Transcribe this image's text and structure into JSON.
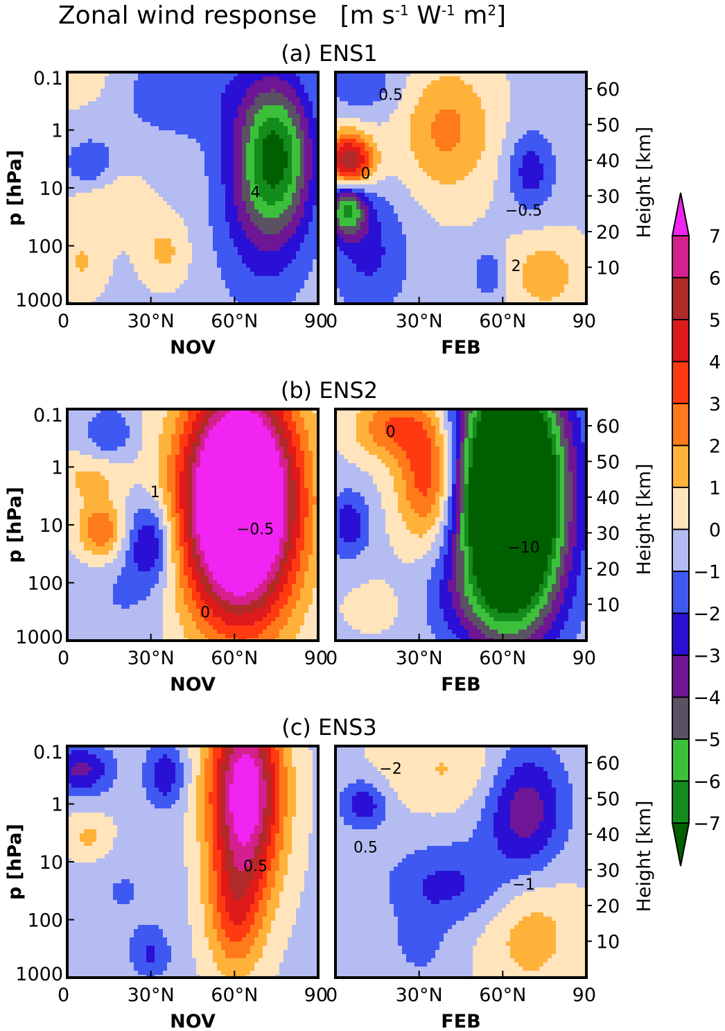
{
  "figure": {
    "title": "Zonal wind response",
    "unit_main": "[m s",
    "unit_sup1": "-1",
    "unit_mid": " W",
    "unit_sup2": "-1",
    "unit_end": " m",
    "unit_sup3": "2",
    "unit_close": "]"
  },
  "colorbar": {
    "levels": [
      "7",
      "6",
      "5",
      "4",
      "3",
      "2",
      "1",
      "0",
      "−1",
      "−2",
      "−3",
      "−4",
      "−5",
      "−6",
      "−7"
    ],
    "colors": [
      "#f224f2",
      "#d4208e",
      "#b02a2a",
      "#df1a1a",
      "#ff3a10",
      "#ff7a1a",
      "#ffb23a",
      "#ffe4bc",
      "#b4bcf2",
      "#4058f2",
      "#2a10d4",
      "#6e1696",
      "#5a5262",
      "#3cc03c",
      "#148c1c",
      "#006000"
    ]
  },
  "chart_data": [
    {
      "type": "heatmap",
      "panel": "(a) ENS1",
      "title": "(a) ENS1",
      "xlabel_left": "NOV",
      "xlabel_right": "FEB",
      "ylabel": "p [hPa]",
      "ylabel_right": "Height [km]",
      "x_ticks": [
        "0",
        "30°N",
        "60°N",
        "90"
      ],
      "y_ticks": [
        "0.1",
        "1",
        "10",
        "100",
        "1000"
      ],
      "height_ticks": [
        "60",
        "50",
        "40",
        "30",
        "20",
        "10"
      ],
      "xlim": [
        0,
        90
      ],
      "ylim": [
        1000,
        0.1
      ],
      "contour_labels_left": [
        "4"
      ],
      "contour_labels_right": [
        "0.5",
        "−0.5",
        "0",
        "2"
      ],
      "nov_features": [
        {
          "lat": 75,
          "logp": 0.4,
          "value": -5.5,
          "slat": 9,
          "slp": 0.9
        },
        {
          "lat": 70,
          "logp": 1.2,
          "value": -2.5,
          "slat": 12,
          "slp": 1.3
        },
        {
          "lat": 40,
          "logp": -0.7,
          "value": -1.5,
          "slat": 18,
          "slp": 0.6
        },
        {
          "lat": 8,
          "logp": 0.6,
          "value": -1.8,
          "slat": 6,
          "slp": 0.3
        },
        {
          "lat": 15,
          "logp": 1.3,
          "value": 1.2,
          "slat": 10,
          "slp": 0.4
        },
        {
          "lat": 35,
          "logp": 2.1,
          "value": 1.5,
          "slat": 6,
          "slp": 0.4
        },
        {
          "lat": 5,
          "logp": 2.3,
          "value": 1.3,
          "slat": 6,
          "slp": 0.4
        },
        {
          "lat": 5,
          "logp": -0.9,
          "value": 1.0,
          "slat": 12,
          "slp": 0.4
        }
      ],
      "feb_features": [
        {
          "lat": 5,
          "logp": 0.55,
          "value": 6.5,
          "slat": 6,
          "slp": 0.35
        },
        {
          "lat": 4,
          "logp": 1.35,
          "value": -5.5,
          "slat": 5,
          "slp": 0.35
        },
        {
          "lat": 12,
          "logp": 2.1,
          "value": -2.0,
          "slat": 10,
          "slp": 0.8
        },
        {
          "lat": 40,
          "logp": 0.0,
          "value": 2.5,
          "slat": 12,
          "slp": 0.8
        },
        {
          "lat": 70,
          "logp": 0.7,
          "value": -2.3,
          "slat": 6,
          "slp": 0.5
        },
        {
          "lat": 75,
          "logp": 2.5,
          "value": 1.8,
          "slat": 10,
          "slp": 0.5
        },
        {
          "lat": 55,
          "logp": 2.5,
          "value": -1.8,
          "slat": 4,
          "slp": 0.3
        },
        {
          "lat": 10,
          "logp": -0.8,
          "value": -1.5,
          "slat": 10,
          "slp": 0.4
        }
      ]
    },
    {
      "type": "heatmap",
      "panel": "(b) ENS2",
      "title": "(b) ENS2",
      "xlabel_left": "NOV",
      "xlabel_right": "FEB",
      "ylabel": "p [hPa]",
      "ylabel_right": "Height [km]",
      "x_ticks": [
        "0",
        "30°N",
        "60°N",
        "90"
      ],
      "y_ticks": [
        "0.1",
        "1",
        "10",
        "100",
        "1000"
      ],
      "height_ticks": [
        "60",
        "50",
        "40",
        "30",
        "20",
        "10"
      ],
      "xlim": [
        0,
        90
      ],
      "ylim": [
        1000,
        0.1
      ],
      "contour_labels_left": [
        "−0.5",
        "1",
        "0"
      ],
      "contour_labels_right": [
        "0",
        "−10"
      ],
      "nov_features": [
        {
          "lat": 62,
          "logp": 0.6,
          "value": 14.0,
          "slat": 14,
          "slp": 1.4
        },
        {
          "lat": 30,
          "logp": 1.3,
          "value": -3.2,
          "slat": 6,
          "slp": 0.5
        },
        {
          "lat": 12,
          "logp": 1.1,
          "value": 3.2,
          "slat": 6,
          "slp": 0.35
        },
        {
          "lat": 15,
          "logp": -0.6,
          "value": -1.8,
          "slat": 6,
          "slp": 0.3
        },
        {
          "lat": 8,
          "logp": 0.2,
          "value": 1.5,
          "slat": 8,
          "slp": 0.3
        },
        {
          "lat": 20,
          "logp": 2.2,
          "value": -0.8,
          "slat": 12,
          "slp": 0.6
        }
      ],
      "feb_features": [
        {
          "lat": 63,
          "logp": 0.5,
          "value": -15.0,
          "slat": 13,
          "slp": 1.5
        },
        {
          "lat": 34,
          "logp": 0.2,
          "value": 4.5,
          "slat": 8,
          "slp": 0.8
        },
        {
          "lat": 20,
          "logp": -0.7,
          "value": 3.0,
          "slat": 10,
          "slp": 0.4
        },
        {
          "lat": 5,
          "logp": 1.0,
          "value": -2.5,
          "slat": 5,
          "slp": 0.4
        },
        {
          "lat": 50,
          "logp": 2.3,
          "value": -1.2,
          "slat": 15,
          "slp": 0.5
        },
        {
          "lat": 15,
          "logp": 2.4,
          "value": 0.6,
          "slat": 10,
          "slp": 0.4
        }
      ]
    },
    {
      "type": "heatmap",
      "panel": "(c) ENS3",
      "title": "(c) ENS3",
      "xlabel_left": "NOV",
      "xlabel_right": "FEB",
      "ylabel": "p [hPa]",
      "ylabel_right": "Height [km]",
      "x_ticks": [
        "0",
        "30°N",
        "60°N",
        "90"
      ],
      "y_ticks": [
        "0.1",
        "1",
        "10",
        "100",
        "1000"
      ],
      "height_ticks": [
        "60",
        "50",
        "40",
        "30",
        "20",
        "10"
      ],
      "xlim": [
        0,
        90
      ],
      "ylim": [
        1000,
        0.1
      ],
      "contour_labels_left": [
        "0.5"
      ],
      "contour_labels_right": [
        "−2",
        "−1",
        "0.5"
      ],
      "nov_features": [
        {
          "lat": 64,
          "logp": -0.2,
          "value": 8.5,
          "slat": 9,
          "slp": 1.2
        },
        {
          "lat": 60,
          "logp": 1.9,
          "value": 3.0,
          "slat": 7,
          "slp": 0.8
        },
        {
          "lat": 35,
          "logp": -0.5,
          "value": -2.5,
          "slat": 5,
          "slp": 0.4
        },
        {
          "lat": 5,
          "logp": -0.6,
          "value": -3.0,
          "slat": 8,
          "slp": 0.3
        },
        {
          "lat": 8,
          "logp": 0.6,
          "value": 1.6,
          "slat": 6,
          "slp": 0.3
        },
        {
          "lat": 30,
          "logp": 2.6,
          "value": -1.8,
          "slat": 5,
          "slp": 0.3
        },
        {
          "lat": 20,
          "logp": 1.5,
          "value": -0.8,
          "slat": 12,
          "slp": 0.6
        }
      ],
      "feb_features": [
        {
          "lat": 68,
          "logp": 0.1,
          "value": -3.5,
          "slat": 10,
          "slp": 0.8
        },
        {
          "lat": 40,
          "logp": 1.4,
          "value": -2.0,
          "slat": 15,
          "slp": 0.5
        },
        {
          "lat": 10,
          "logp": 0.0,
          "value": -2.5,
          "slat": 6,
          "slp": 0.3
        },
        {
          "lat": 40,
          "logp": -0.6,
          "value": 1.3,
          "slat": 18,
          "slp": 0.5
        },
        {
          "lat": 70,
          "logp": 2.2,
          "value": 1.8,
          "slat": 12,
          "slp": 0.8
        },
        {
          "lat": 30,
          "logp": 2.4,
          "value": -1.2,
          "slat": 6,
          "slp": 0.4
        }
      ]
    }
  ]
}
